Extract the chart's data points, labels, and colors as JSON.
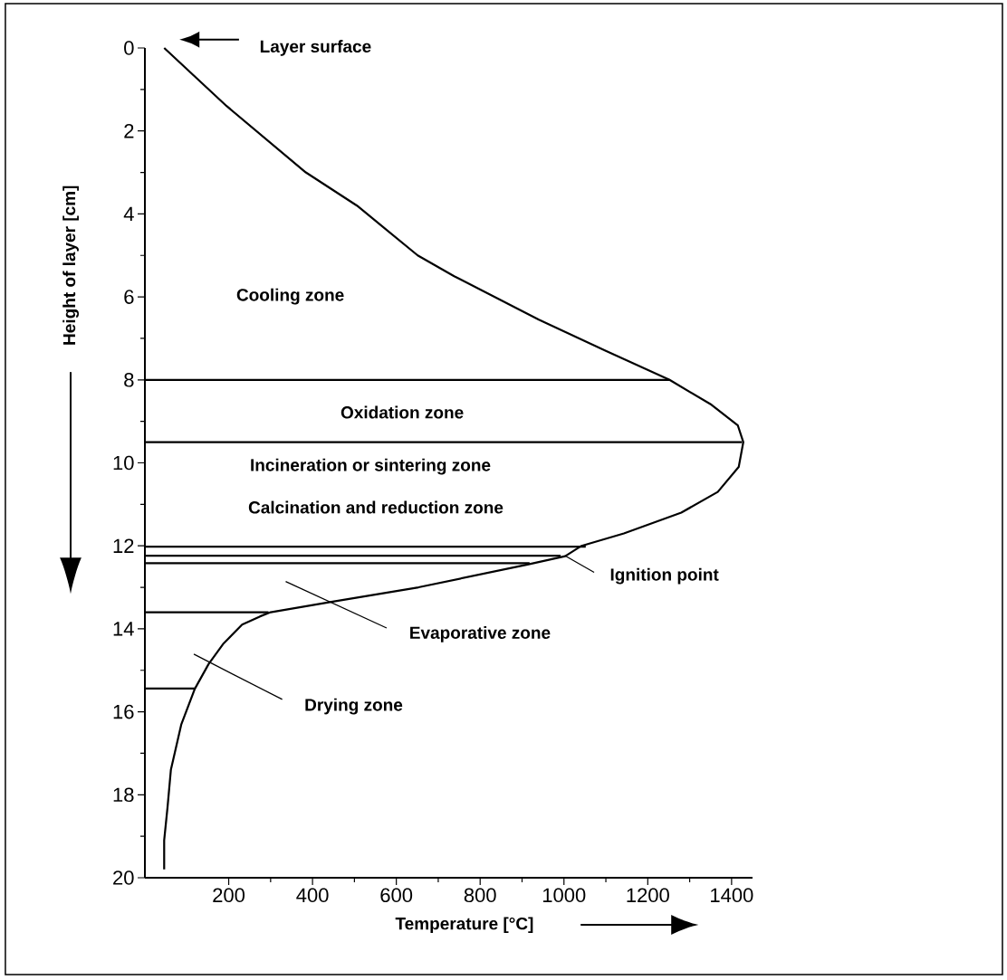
{
  "chart_data": {
    "type": "line",
    "xlabel": "Temperature [°C]",
    "ylabel": "Height of layer [cm]",
    "xlim": [
      0,
      1450
    ],
    "ylim": [
      20,
      0
    ],
    "xticks": [
      200,
      400,
      600,
      800,
      1000,
      1200,
      1400
    ],
    "yticks": [
      0,
      2,
      4,
      6,
      8,
      10,
      12,
      14,
      16,
      18,
      20
    ],
    "grid": false,
    "marker": "none",
    "line_style": "solid",
    "series": [
      {
        "color": "#000000",
        "x": [
          46,
          195,
          384,
          506,
          651,
          738,
          940,
          1100,
          1252,
          1352,
          1415,
          1428,
          1417,
          1367,
          1280,
          1143,
          1042,
          1003,
          913,
          653,
          445,
          300,
          275,
          232,
          188,
          152,
          119,
          87,
          62,
          54,
          46,
          46
        ],
        "values": [
          0,
          1.4,
          3.0,
          3.8,
          5.0,
          5.5,
          6.55,
          7.3,
          8.0,
          8.6,
          9.1,
          9.5,
          10.1,
          10.7,
          11.2,
          11.7,
          12.0,
          12.25,
          12.45,
          13.0,
          13.35,
          13.6,
          13.7,
          13.9,
          14.35,
          14.85,
          15.45,
          16.3,
          17.4,
          18.3,
          19.1,
          19.8
        ]
      },
      {
        "color": "#000000",
        "x": [
          0,
          1252
        ],
        "values": [
          8.0,
          8.0
        ]
      },
      {
        "color": "#000000",
        "x": [
          0,
          1425
        ],
        "values": [
          9.5,
          9.5
        ]
      },
      {
        "color": "#000000",
        "x": [
          0,
          1052
        ],
        "values": [
          12.02,
          12.02
        ]
      },
      {
        "color": "#000000",
        "x": [
          0,
          992
        ],
        "values": [
          12.24,
          12.24
        ]
      },
      {
        "color": "#000000",
        "x": [
          0,
          918
        ],
        "values": [
          12.42,
          12.42
        ]
      },
      {
        "color": "#000000",
        "x": [
          0,
          295
        ],
        "values": [
          13.6,
          13.6
        ]
      },
      {
        "color": "#000000",
        "x": [
          0,
          119
        ],
        "values": [
          15.44,
          15.44
        ]
      }
    ],
    "annotations": [
      "Layer surface",
      "Cooling zone",
      "Oxidation zone",
      "Incineration or sintering zone",
      "Calcination and reduction zone",
      {
        "text": "Ignition point",
        "x": 1003,
        "y": 12.24
      },
      "Evaporative zone",
      "Drying zone"
    ]
  }
}
